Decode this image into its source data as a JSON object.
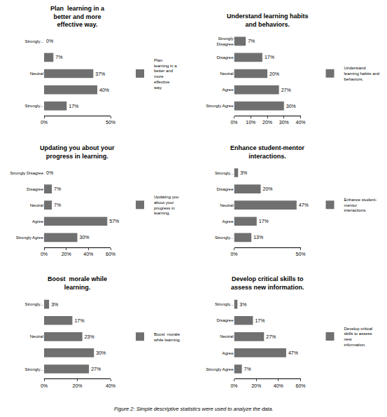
{
  "chart_data": [
    {
      "type": "bar",
      "orientation": "horizontal",
      "title": "Plan  learning in a\nbetter and more\neffective way.",
      "categories": [
        "Strongly...",
        null,
        "Neutral",
        null,
        "Strongly..."
      ],
      "series": [
        {
          "name": "Plan\nlearning in a\nbetter and\nmore\neffective\nway.",
          "color": "#707070",
          "values": [
            17,
            40,
            37,
            7,
            0
          ],
          "value_labels": [
            "17%",
            "40%",
            "37%",
            "7%",
            "0%"
          ]
        }
      ],
      "xlim": [
        0,
        50
      ],
      "xticks": [
        {
          "value": 0,
          "label": "0%"
        },
        {
          "value": 50,
          "label": "50%"
        }
      ],
      "data_labels": true,
      "grid": false,
      "legend": "right"
    },
    {
      "type": "bar",
      "orientation": "horizontal",
      "title": "Understand learning habits\nand behaviors.",
      "categories": [
        "Strongly Agree",
        "Agree",
        "Neutral",
        "Disagree",
        "Strongly\nDisagree"
      ],
      "series": [
        {
          "name": "Understand\nlearning habits and\nbehaviors.",
          "color": "#707070",
          "values": [
            30,
            27,
            20,
            17,
            7
          ],
          "value_labels": [
            "30%",
            "27%",
            "20%",
            "17%",
            "7%"
          ]
        }
      ],
      "xlim": [
        0,
        40
      ],
      "xticks": [
        {
          "value": 0,
          "label": "0%"
        },
        {
          "value": 10,
          "label": "10%"
        },
        {
          "value": 20,
          "label": "20%"
        },
        {
          "value": 30,
          "label": "30%"
        },
        {
          "value": 40,
          "label": "40%"
        }
      ],
      "data_labels": true,
      "grid": false,
      "legend": "right"
    },
    {
      "type": "bar",
      "orientation": "horizontal",
      "title": "Updating you about your\nprogress in learning.",
      "categories": [
        "Strongly Agree",
        "Agree",
        "Neutral",
        "Disagree",
        "Strongly Disagree"
      ],
      "series": [
        {
          "name": "Updating you\nabout your\nprogress in\nlearning.",
          "color": "#707070",
          "values": [
            30,
            57,
            7,
            7,
            0
          ],
          "value_labels": [
            "30%",
            "57%",
            "7%",
            "7%",
            "0%"
          ]
        }
      ],
      "xlim": [
        0,
        60
      ],
      "xticks": [
        {
          "value": 0,
          "label": "0%"
        },
        {
          "value": 20,
          "label": "20%"
        },
        {
          "value": 40,
          "label": "40%"
        },
        {
          "value": 60,
          "label": "60%"
        }
      ],
      "data_labels": true,
      "grid": false,
      "legend": "right"
    },
    {
      "type": "bar",
      "orientation": "horizontal",
      "title": "Enhance student-mentor\ninteractions.",
      "categories": [
        "Strongly...",
        "Agree",
        "Neutral",
        "Disagree",
        "Strongly..."
      ],
      "series": [
        {
          "name": "Enhance student-\nmentor\ninteractions.",
          "color": "#707070",
          "values": [
            13,
            17,
            47,
            20,
            3
          ],
          "value_labels": [
            "13%",
            "17%",
            "47%",
            "20%",
            "3%"
          ]
        }
      ],
      "xlim": [
        0,
        50
      ],
      "xticks": [
        {
          "value": 0,
          "label": "0%"
        },
        {
          "value": 50,
          "label": "50%"
        }
      ],
      "data_labels": true,
      "grid": false,
      "legend": "right"
    },
    {
      "type": "bar",
      "orientation": "horizontal",
      "title": "Boost  morale while\nlearning.",
      "categories": [
        "Strongly...",
        null,
        "Neutral",
        null,
        "Strongly..."
      ],
      "series": [
        {
          "name": "Boost  morale\nwhile learning.",
          "color": "#707070",
          "values": [
            27,
            30,
            23,
            17,
            3
          ],
          "value_labels": [
            "27%",
            "30%",
            "23%",
            "17%",
            "3%"
          ]
        }
      ],
      "xlim": [
        0,
        40
      ],
      "xticks": [
        {
          "value": 0,
          "label": "0%"
        },
        {
          "value": 20,
          "label": "20%"
        },
        {
          "value": 40,
          "label": "40%"
        }
      ],
      "data_labels": true,
      "grid": false,
      "legend": "right"
    },
    {
      "type": "bar",
      "orientation": "horizontal",
      "title": "Develop critical skills to\nassess new information.",
      "categories": [
        "Strongly Agree",
        "Agree",
        "Neutral",
        "Disagree",
        "Strongly..."
      ],
      "series": [
        {
          "name": "Develop critical\nskills to assess\nnew\ninformation.",
          "color": "#707070",
          "values": [
            7,
            47,
            27,
            17,
            3
          ],
          "value_labels": [
            "7%",
            "47%",
            "27%",
            "17%",
            "3%"
          ]
        }
      ],
      "xlim": [
        0,
        60
      ],
      "xticks": [
        {
          "value": 0,
          "label": "0%"
        },
        {
          "value": 20,
          "label": "20%"
        },
        {
          "value": 40,
          "label": "40%"
        },
        {
          "value": 60,
          "label": "60%"
        }
      ],
      "data_labels": true,
      "grid": false,
      "legend": "right"
    }
  ],
  "caption": "Figure 2: Simple descriptive statistics were used to analyze the data."
}
